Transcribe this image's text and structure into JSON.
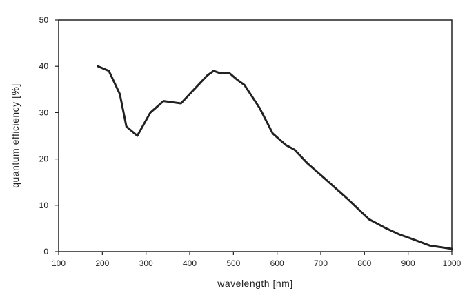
{
  "chart_data": {
    "type": "line",
    "title": "",
    "xlabel": "wavelength [nm]",
    "ylabel": "quantum efficiency [%]",
    "xlim": [
      100,
      1000
    ],
    "ylim": [
      0,
      50
    ],
    "x_ticks": [
      100,
      200,
      300,
      400,
      500,
      600,
      700,
      800,
      900,
      1000
    ],
    "y_ticks": [
      0,
      10,
      20,
      30,
      40,
      50
    ],
    "grid": false,
    "legend": "none",
    "series": [
      {
        "color": "#222222",
        "x": [
          190,
          215,
          240,
          255,
          280,
          310,
          340,
          380,
          410,
          440,
          455,
          470,
          490,
          510,
          525,
          560,
          590,
          620,
          640,
          670,
          710,
          760,
          810,
          850,
          880,
          910,
          950,
          1000
        ],
        "y": [
          40,
          39,
          34,
          27,
          25,
          30,
          32.5,
          32,
          35,
          38,
          39,
          38.5,
          38.6,
          37,
          36,
          31,
          25.5,
          23,
          22,
          19,
          15.7,
          11.5,
          7,
          5,
          3.7,
          2.7,
          1.3,
          0.6
        ]
      }
    ]
  }
}
